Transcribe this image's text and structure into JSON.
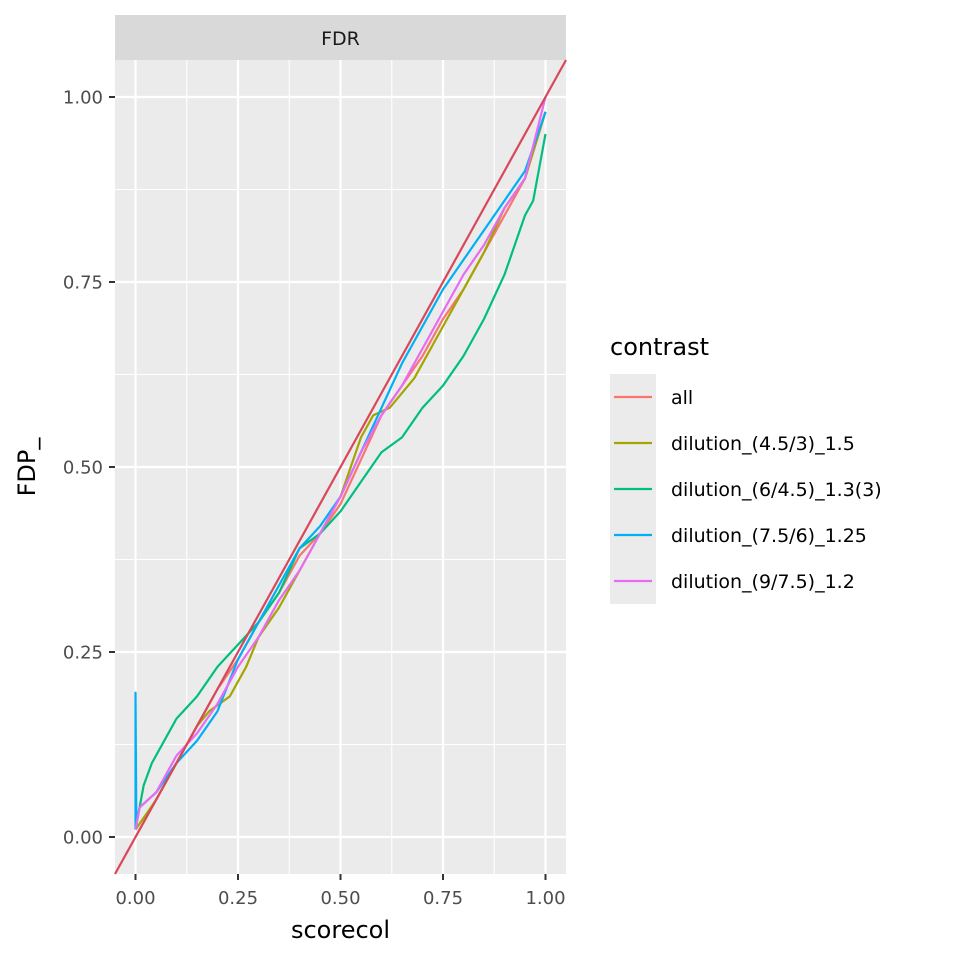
{
  "chart_data": {
    "type": "line",
    "facet_label": "FDR",
    "xlabel": "scorecol",
    "ylabel": "FDP_",
    "xlim": [
      -0.05,
      1.05
    ],
    "ylim": [
      -0.05,
      1.05
    ],
    "x_ticks": [
      0.0,
      0.25,
      0.5,
      0.75,
      1.0
    ],
    "x_tick_labels": [
      "0.00",
      "0.25",
      "0.50",
      "0.75",
      "1.00"
    ],
    "y_ticks": [
      0.0,
      0.25,
      0.5,
      0.75,
      1.0
    ],
    "y_tick_labels": [
      "0.00",
      "0.25",
      "0.50",
      "0.75",
      "1.00"
    ],
    "grid": true,
    "legend_title": "contrast",
    "legend_position": "right",
    "reference_line": {
      "slope": 1,
      "intercept": 0,
      "color": "#D9475A"
    },
    "series": [
      {
        "name": "all",
        "color": "#F8766D",
        "points": [
          [
            0,
            0
          ],
          [
            0.05,
            0.05
          ],
          [
            0.1,
            0.1
          ],
          [
            0.15,
            0.15
          ],
          [
            0.2,
            0.2
          ],
          [
            0.25,
            0.24
          ],
          [
            0.3,
            0.29
          ],
          [
            0.35,
            0.33
          ],
          [
            0.4,
            0.38
          ],
          [
            0.45,
            0.41
          ],
          [
            0.5,
            0.45
          ],
          [
            0.55,
            0.51
          ],
          [
            0.6,
            0.57
          ],
          [
            0.65,
            0.61
          ],
          [
            0.7,
            0.65
          ],
          [
            0.75,
            0.7
          ],
          [
            0.8,
            0.74
          ],
          [
            0.85,
            0.79
          ],
          [
            0.9,
            0.84
          ],
          [
            0.95,
            0.89
          ],
          [
            1.0,
            0.98
          ]
        ]
      },
      {
        "name": "dilution_(4.5/3)_1.5",
        "color": "#A3A500",
        "points": [
          [
            0,
            0.01
          ],
          [
            0.05,
            0.05
          ],
          [
            0.1,
            0.1
          ],
          [
            0.15,
            0.15
          ],
          [
            0.18,
            0.17
          ],
          [
            0.23,
            0.19
          ],
          [
            0.27,
            0.23
          ],
          [
            0.3,
            0.27
          ],
          [
            0.35,
            0.31
          ],
          [
            0.4,
            0.36
          ],
          [
            0.45,
            0.41
          ],
          [
            0.5,
            0.46
          ],
          [
            0.55,
            0.54
          ],
          [
            0.58,
            0.57
          ],
          [
            0.62,
            0.58
          ],
          [
            0.68,
            0.62
          ],
          [
            0.72,
            0.66
          ],
          [
            0.75,
            0.69
          ],
          [
            0.8,
            0.74
          ],
          [
            0.85,
            0.79
          ],
          [
            0.9,
            0.85
          ],
          [
            0.95,
            0.89
          ],
          [
            1.0,
            0.98
          ]
        ]
      },
      {
        "name": "dilution_(6/4.5)_1.3(3)",
        "color": "#00BF7D",
        "points": [
          [
            0,
            0.01
          ],
          [
            0.02,
            0.07
          ],
          [
            0.04,
            0.1
          ],
          [
            0.07,
            0.13
          ],
          [
            0.1,
            0.16
          ],
          [
            0.15,
            0.19
          ],
          [
            0.2,
            0.23
          ],
          [
            0.25,
            0.26
          ],
          [
            0.3,
            0.29
          ],
          [
            0.35,
            0.33
          ],
          [
            0.4,
            0.39
          ],
          [
            0.45,
            0.41
          ],
          [
            0.5,
            0.44
          ],
          [
            0.55,
            0.48
          ],
          [
            0.6,
            0.52
          ],
          [
            0.65,
            0.54
          ],
          [
            0.7,
            0.58
          ],
          [
            0.75,
            0.61
          ],
          [
            0.8,
            0.65
          ],
          [
            0.85,
            0.7
          ],
          [
            0.9,
            0.76
          ],
          [
            0.95,
            0.84
          ],
          [
            0.97,
            0.86
          ],
          [
            0.99,
            0.92
          ],
          [
            1.0,
            0.95
          ]
        ]
      },
      {
        "name": "dilution_(7.5/6)_1.25",
        "color": "#00B0F6",
        "points": [
          [
            0,
            0.01
          ],
          [
            0,
            0.195
          ],
          [
            0.002,
            0.02
          ],
          [
            0.01,
            0.04
          ],
          [
            0.05,
            0.06
          ],
          [
            0.1,
            0.1
          ],
          [
            0.15,
            0.13
          ],
          [
            0.2,
            0.17
          ],
          [
            0.25,
            0.24
          ],
          [
            0.3,
            0.29
          ],
          [
            0.35,
            0.34
          ],
          [
            0.4,
            0.39
          ],
          [
            0.45,
            0.42
          ],
          [
            0.5,
            0.46
          ],
          [
            0.55,
            0.52
          ],
          [
            0.6,
            0.58
          ],
          [
            0.65,
            0.64
          ],
          [
            0.7,
            0.69
          ],
          [
            0.75,
            0.74
          ],
          [
            0.8,
            0.78
          ],
          [
            0.85,
            0.82
          ],
          [
            0.9,
            0.86
          ],
          [
            0.95,
            0.9
          ],
          [
            1.0,
            0.98
          ]
        ]
      },
      {
        "name": "dilution_(9/7.5)_1.2",
        "color": "#E76BF3",
        "points": [
          [
            0,
            0.01
          ],
          [
            0.01,
            0.04
          ],
          [
            0.05,
            0.06
          ],
          [
            0.1,
            0.11
          ],
          [
            0.15,
            0.14
          ],
          [
            0.2,
            0.18
          ],
          [
            0.25,
            0.23
          ],
          [
            0.3,
            0.27
          ],
          [
            0.35,
            0.32
          ],
          [
            0.4,
            0.36
          ],
          [
            0.45,
            0.41
          ],
          [
            0.5,
            0.46
          ],
          [
            0.55,
            0.52
          ],
          [
            0.6,
            0.57
          ],
          [
            0.65,
            0.61
          ],
          [
            0.7,
            0.66
          ],
          [
            0.75,
            0.71
          ],
          [
            0.8,
            0.76
          ],
          [
            0.85,
            0.8
          ],
          [
            0.9,
            0.85
          ],
          [
            0.95,
            0.89
          ],
          [
            1.0,
            1.0
          ]
        ]
      }
    ]
  }
}
